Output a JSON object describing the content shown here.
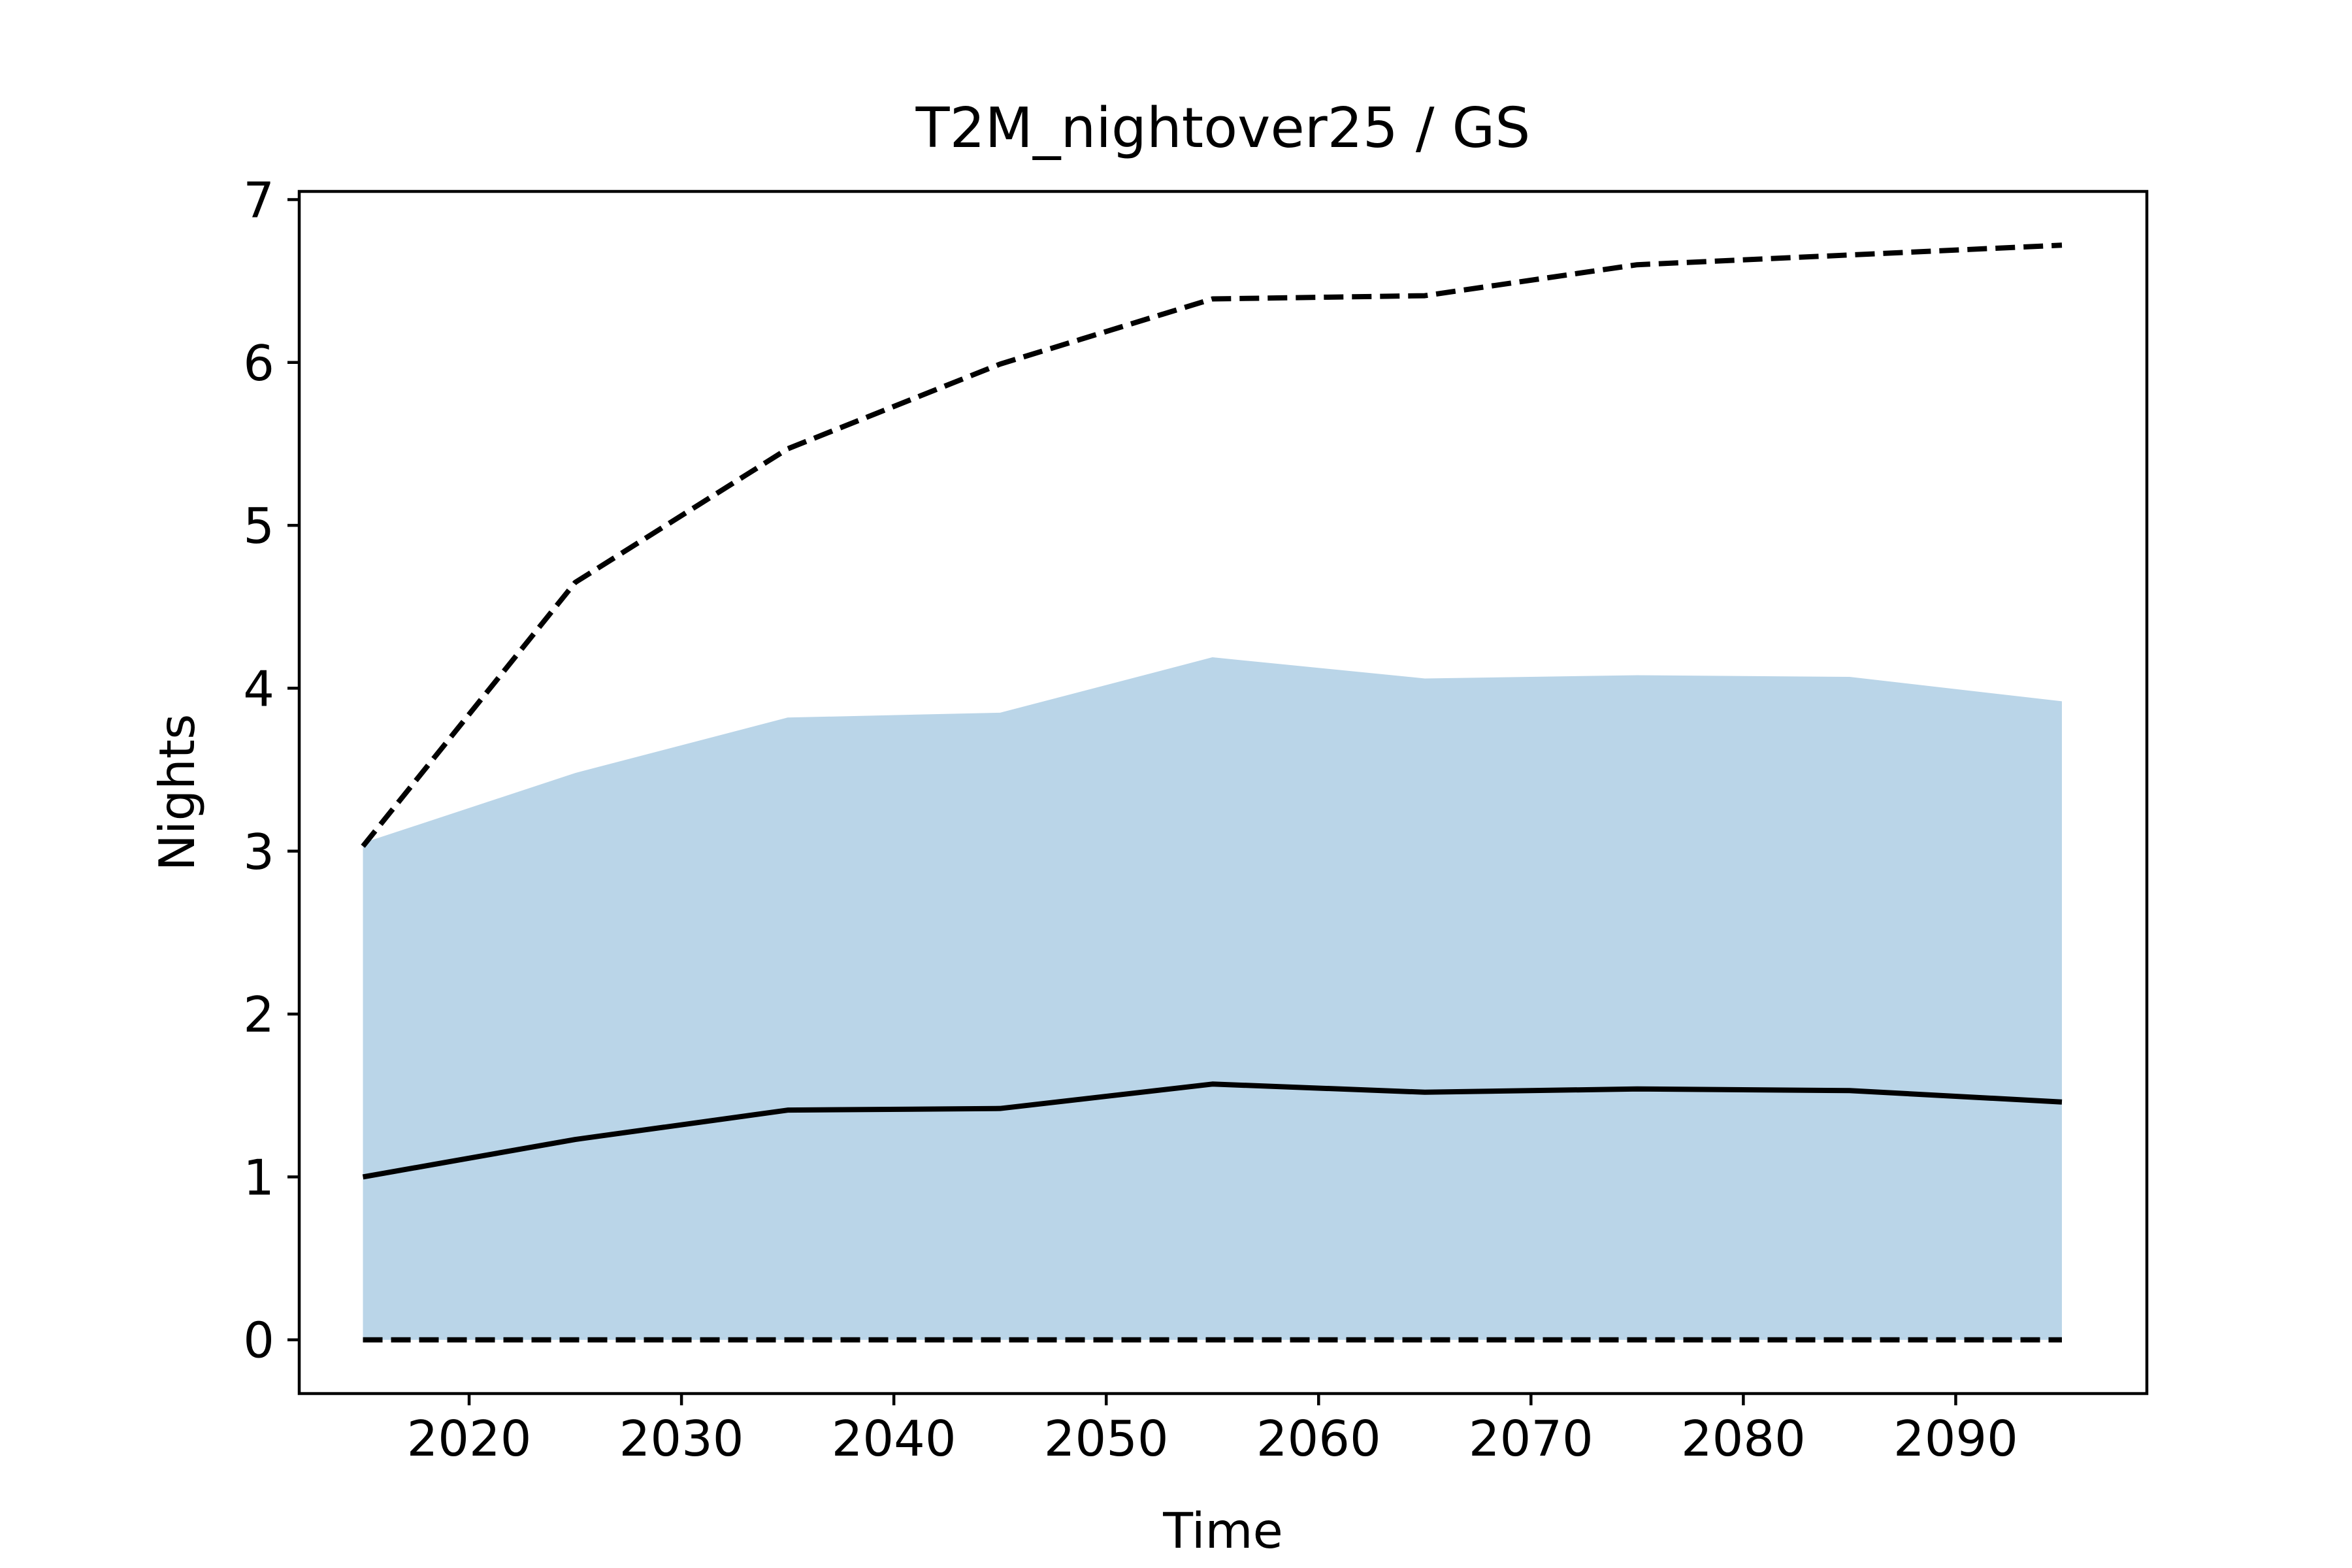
{
  "chart_data": {
    "type": "line",
    "title": "T2M_nightover25 / GS",
    "xlabel": "Time",
    "ylabel": "Nights",
    "x": [
      2015,
      2025,
      2035,
      2045,
      2055,
      2065,
      2075,
      2085,
      2095
    ],
    "xlim": [
      2012,
      2099
    ],
    "ylim": [
      -0.33,
      7.05
    ],
    "xticks": [
      2020,
      2030,
      2040,
      2050,
      2060,
      2070,
      2080,
      2090
    ],
    "yticks": [
      0,
      1,
      2,
      3,
      4,
      5,
      6,
      7
    ],
    "grid": false,
    "band": {
      "lower": [
        0,
        0,
        0,
        0,
        0,
        0,
        0,
        0,
        0
      ],
      "upper": [
        3.05,
        3.48,
        3.82,
        3.85,
        4.19,
        4.06,
        4.08,
        4.07,
        3.92
      ],
      "color": "#bad5e8"
    },
    "series": [
      {
        "style": "solid",
        "color": "#000000",
        "values": [
          1.0,
          1.23,
          1.41,
          1.42,
          1.57,
          1.52,
          1.54,
          1.53,
          1.46
        ]
      },
      {
        "style": "dashed",
        "color": "#000000",
        "values": [
          3.03,
          4.65,
          5.47,
          5.99,
          6.39,
          6.41,
          6.6,
          6.66,
          6.72
        ]
      },
      {
        "style": "dashed",
        "color": "#000000",
        "values": [
          0,
          0,
          0,
          0,
          0,
          0,
          0,
          0,
          0
        ]
      }
    ]
  }
}
